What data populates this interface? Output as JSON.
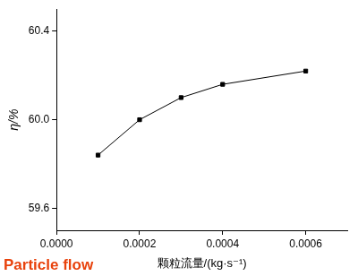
{
  "chart_data": {
    "type": "line",
    "x": [
      0.0001,
      0.0002,
      0.0003,
      0.0004,
      0.0006
    ],
    "values": [
      59.84,
      60.0,
      60.1,
      60.16,
      60.22
    ],
    "color": "#000000",
    "marker": "square",
    "line_style": "solid",
    "xlabel": "颗粒流量/(kg·s⁻¹)",
    "ylabel": "η/%",
    "annotation": "Particle flow",
    "xlim": [
      0,
      0.0007
    ],
    "xticks": [
      {
        "value": 0,
        "label": "0.0000"
      },
      {
        "value": 0.0002,
        "label": "0.0002"
      },
      {
        "value": 0.0004,
        "label": "0.0004"
      },
      {
        "value": 0.0006,
        "label": "0.0006"
      }
    ],
    "ylim": [
      59.5,
      60.5
    ],
    "yticks": [
      59.6,
      {
        "value": 60,
        "label": "60.0"
      },
      60.4
    ],
    "grid": false
  }
}
